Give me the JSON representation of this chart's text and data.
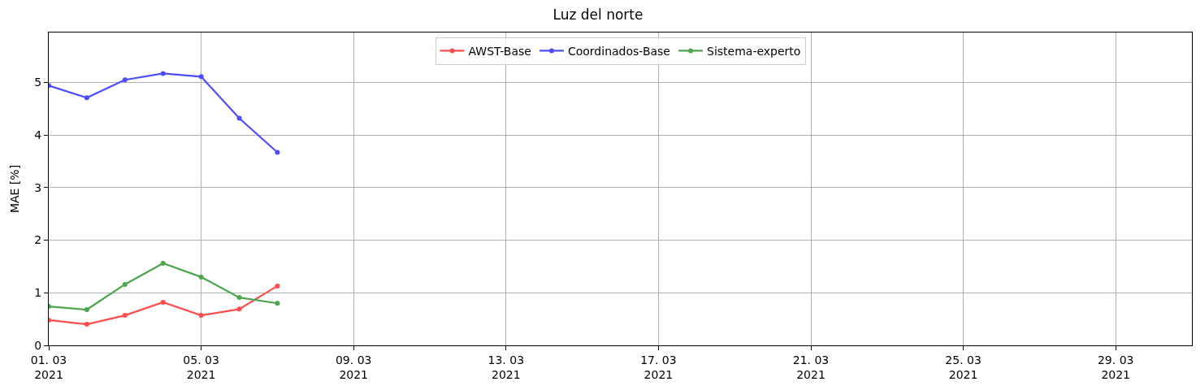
{
  "chart_data": {
    "type": "line",
    "title": "Luz del norte",
    "ylabel": "MAE [%]",
    "x": [
      "2021-03-01",
      "2021-03-02",
      "2021-03-03",
      "2021-03-04",
      "2021-03-05",
      "2021-03-06",
      "2021-03-07"
    ],
    "series": [
      {
        "name": "AWST-Base",
        "color": "#ff4d4d",
        "values": [
          0.48,
          0.4,
          0.57,
          0.82,
          0.57,
          0.69,
          1.13
        ]
      },
      {
        "name": "Coordinados-Base",
        "color": "#4d4dff",
        "values": [
          4.94,
          4.71,
          5.05,
          5.17,
          5.11,
          4.32,
          3.67
        ]
      },
      {
        "name": "Sistema-experto",
        "color": "#4da64d",
        "values": [
          0.74,
          0.68,
          1.16,
          1.56,
          1.3,
          0.91,
          0.8
        ]
      }
    ],
    "xlim": [
      "2021-03-01",
      "2021-03-31"
    ],
    "xticks": [
      {
        "value": "2021-03-01",
        "label": "01. 03\n2021"
      },
      {
        "value": "2021-03-05",
        "label": "05. 03\n2021"
      },
      {
        "value": "2021-03-09",
        "label": "09. 03\n2021"
      },
      {
        "value": "2021-03-13",
        "label": "13. 03\n2021"
      },
      {
        "value": "2021-03-17",
        "label": "17. 03\n2021"
      },
      {
        "value": "2021-03-21",
        "label": "21. 03\n2021"
      },
      {
        "value": "2021-03-25",
        "label": "25. 03\n2021"
      },
      {
        "value": "2021-03-29",
        "label": "29. 03\n2021"
      }
    ],
    "ylim": [
      0,
      5.95
    ],
    "yticks": [
      0,
      1,
      2,
      3,
      4,
      5
    ],
    "grid": true,
    "legend": "top",
    "marker": "circle",
    "line_style": "solid"
  }
}
